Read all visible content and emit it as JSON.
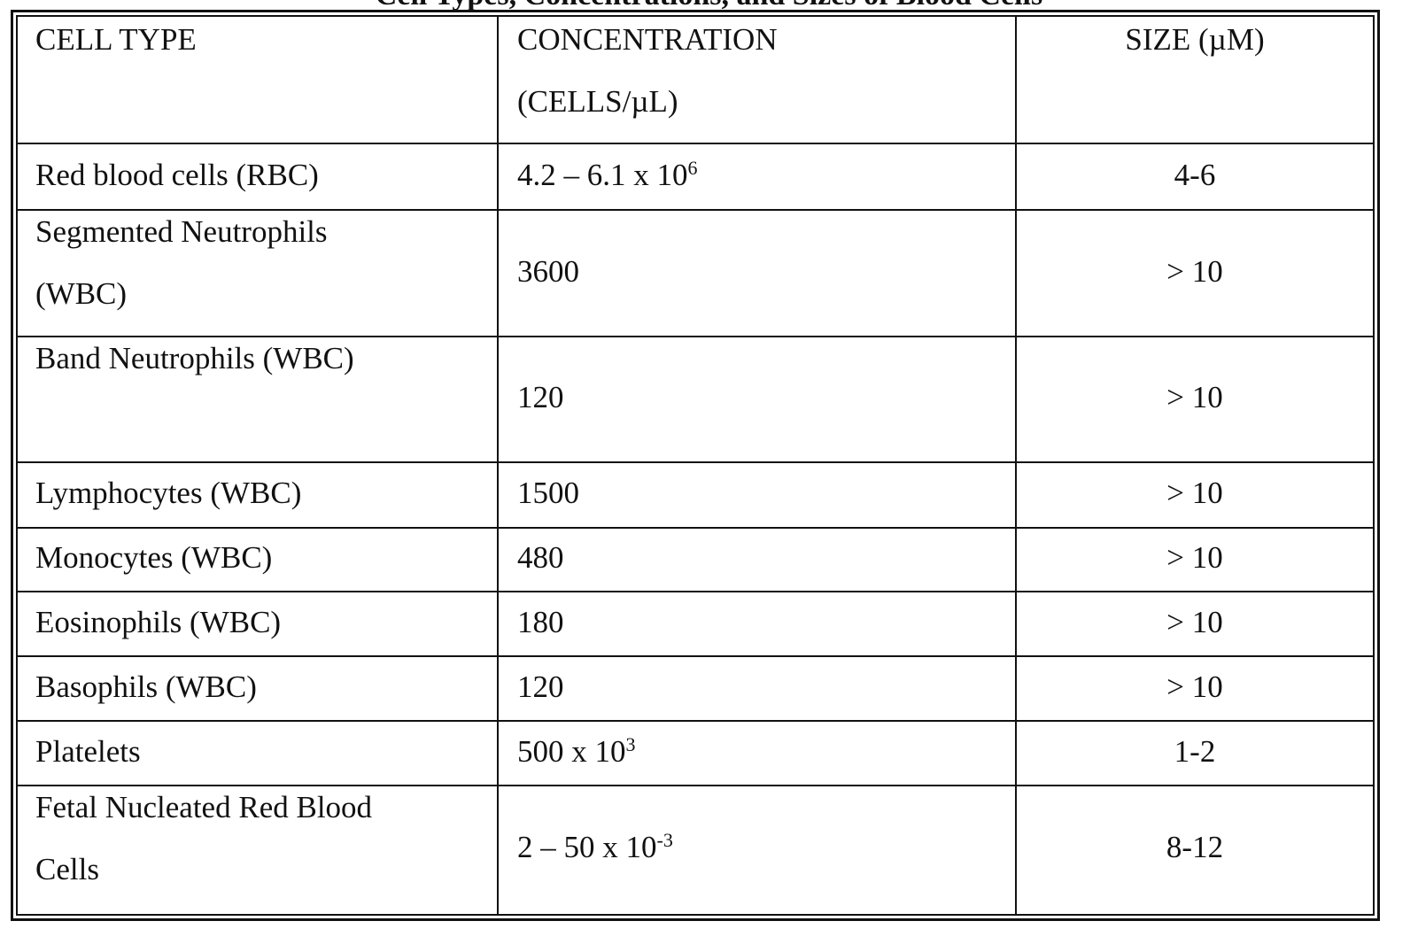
{
  "title": "Cell Types, Concentrations, and Sizes of Blood Cells",
  "headers": [
    "CELL TYPE",
    "CONCENTRATION (CELLS/µL)",
    "SIZE (µM)"
  ],
  "rows": [
    {
      "cell_type": "Red blood cells (RBC)",
      "concentration": "4.2 – 6.1 x 10",
      "exp": "6",
      "size": "4-6"
    },
    {
      "cell_type": "Segmented Neutrophils (WBC)",
      "concentration": "3600",
      "exp": "",
      "size": "> 10"
    },
    {
      "cell_type": "Band Neutrophils (WBC)",
      "concentration": "120",
      "exp": "",
      "size": "> 10"
    },
    {
      "cell_type": "Lymphocytes (WBC)",
      "concentration": "1500",
      "exp": "",
      "size": "> 10"
    },
    {
      "cell_type": "Monocytes (WBC)",
      "concentration": "480",
      "exp": "",
      "size": "> 10"
    },
    {
      "cell_type": "Eosinophils (WBC)",
      "concentration": "180",
      "exp": "",
      "size": "> 10"
    },
    {
      "cell_type": "Basophils (WBC)",
      "concentration": "120",
      "exp": "",
      "size": "> 10"
    },
    {
      "cell_type": "Platelets",
      "concentration": "500 x 10",
      "exp": "3",
      "size": "1-2"
    },
    {
      "cell_type": "Fetal Nucleated Red Blood Cells",
      "concentration": "2 – 50 x 10",
      "exp": "-3",
      "size": "8-12"
    }
  ]
}
